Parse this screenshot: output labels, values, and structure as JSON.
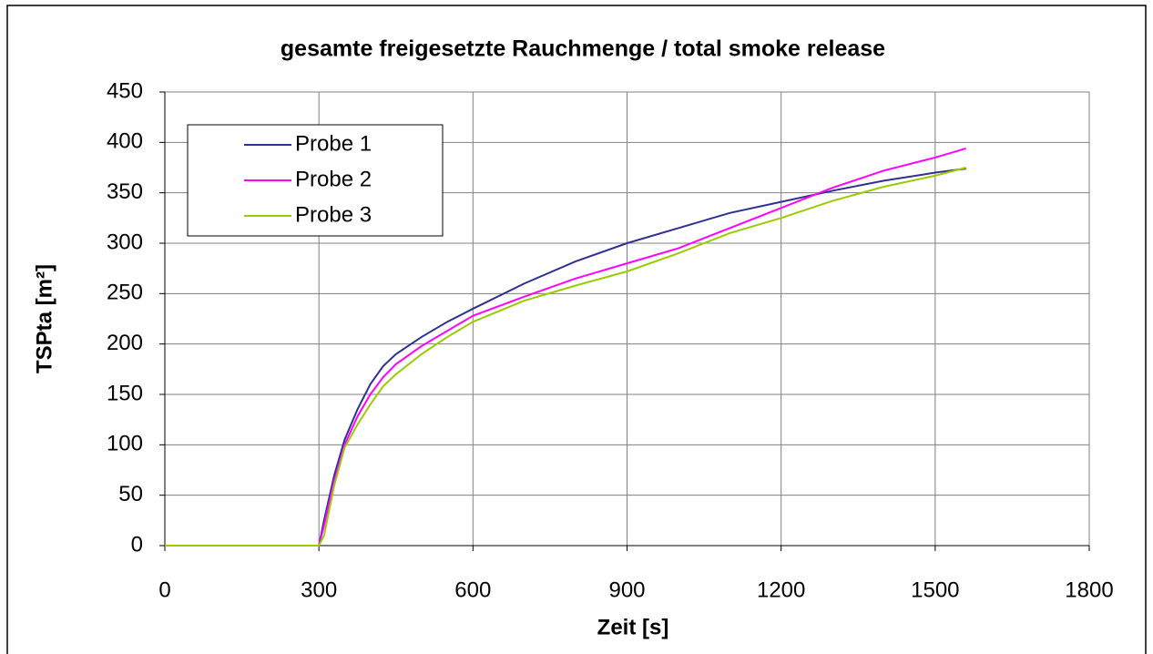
{
  "chart_data": {
    "type": "line",
    "title": "gesamte freigesetzte Rauchmenge / total smoke release",
    "x_label": "Zeit [s]",
    "y_label": "TSPta [m²]",
    "x": [
      0,
      300,
      310,
      330,
      350,
      375,
      400,
      425,
      450,
      500,
      550,
      600,
      700,
      800,
      900,
      1000,
      1100,
      1200,
      1300,
      1400,
      1500,
      1560
    ],
    "series": [
      {
        "name": "Probe 1",
        "color": "#2e3192",
        "values": [
          0,
          0,
          25,
          70,
          105,
          135,
          160,
          178,
          190,
          207,
          222,
          235,
          260,
          282,
          300,
          315,
          330,
          341,
          352,
          362,
          370,
          374
        ]
      },
      {
        "name": "Probe 2",
        "color": "#ff00ff",
        "values": [
          0,
          0,
          20,
          65,
          100,
          128,
          150,
          167,
          180,
          198,
          213,
          228,
          247,
          265,
          280,
          295,
          315,
          335,
          355,
          372,
          385,
          394
        ]
      },
      {
        "name": "Probe 3",
        "color": "#99cc00",
        "values": [
          0,
          0,
          10,
          60,
          97,
          120,
          140,
          158,
          170,
          190,
          207,
          222,
          243,
          258,
          272,
          290,
          310,
          325,
          342,
          356,
          367,
          375
        ]
      }
    ],
    "xlim": [
      0,
      1800
    ],
    "xticks": [
      0,
      300,
      600,
      900,
      1200,
      1500,
      1800
    ],
    "ylim": [
      0,
      450
    ],
    "yticks": [
      0,
      50,
      100,
      150,
      200,
      250,
      300,
      350,
      400,
      450
    ],
    "grid": true,
    "legend": "upper left"
  }
}
